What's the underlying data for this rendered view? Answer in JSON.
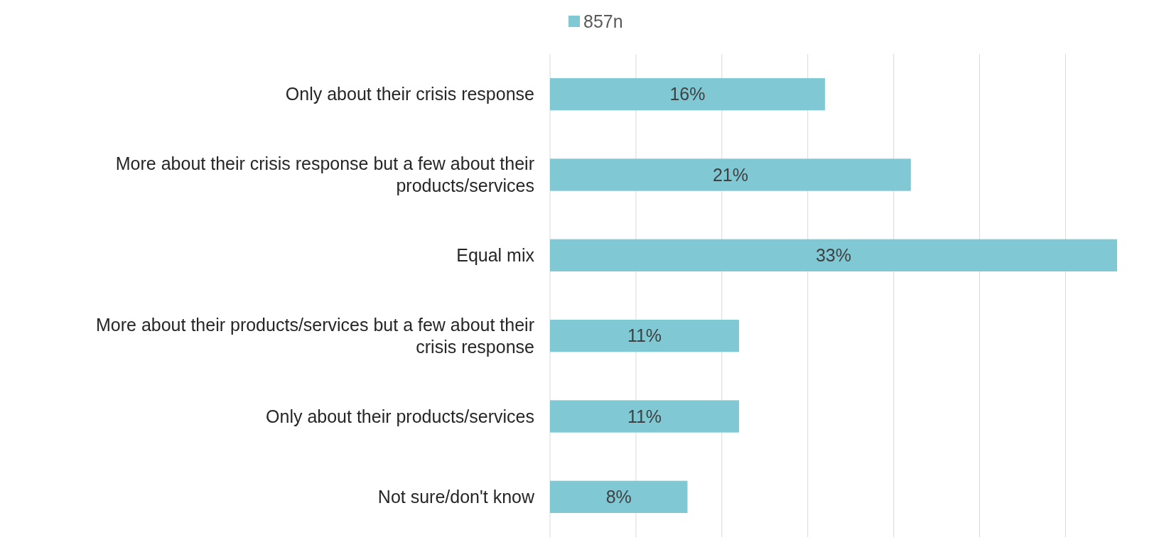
{
  "chart_data": {
    "type": "bar",
    "orientation": "horizontal",
    "categories": [
      "Only about their crisis response",
      "More about their crisis response but a few about their products/services",
      "Equal mix",
      "More about their products/services but a few about their crisis response",
      "Only about their products/services",
      "Not sure/don't know"
    ],
    "series": [
      {
        "name": "857n",
        "color": "#7fc8d4",
        "values": [
          16,
          21,
          33,
          11,
          11,
          8
        ],
        "value_labels": [
          "16%",
          "21%",
          "33%",
          "11%",
          "11%",
          "8%"
        ]
      }
    ],
    "xticks": [
      {
        "value": 0,
        "label": null
      },
      {
        "value": 5,
        "label": null
      },
      {
        "value": 10,
        "label": null
      },
      {
        "value": 15,
        "label": null
      },
      {
        "value": 20,
        "label": null
      },
      {
        "value": 25,
        "label": null
      },
      {
        "value": 30,
        "label": null
      }
    ],
    "grid": "x",
    "legend": "top",
    "tick_labels": "y"
  }
}
